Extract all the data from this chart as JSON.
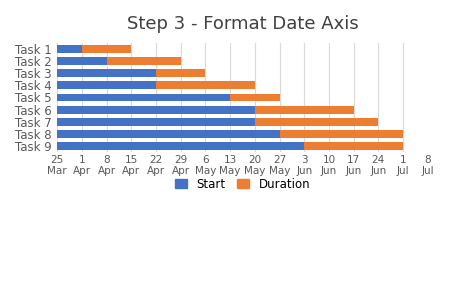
{
  "title": "Step 3 - Format Date Axis",
  "tasks": [
    "Task 1",
    "Task 2",
    "Task 3",
    "Task 4",
    "Task 5",
    "Task 6",
    "Task 7",
    "Task 8",
    "Task 9"
  ],
  "blue_widths": [
    7,
    14,
    28,
    28,
    49,
    56,
    56,
    63,
    70
  ],
  "orange_widths": [
    14,
    21,
    14,
    28,
    14,
    28,
    35,
    35,
    28
  ],
  "color_start": "#4472C4",
  "color_duration": "#ED7D31",
  "color_invisible": "#FFFFFF",
  "x_min": 0,
  "x_max": 105,
  "tick_positions": [
    0,
    7,
    14,
    21,
    28,
    35,
    42,
    49,
    56,
    63,
    70,
    77,
    84,
    91,
    98,
    105
  ],
  "tick_labels_day": [
    "25",
    "1",
    "8",
    "15",
    "22",
    "29",
    "6",
    "13",
    "20",
    "27",
    "3",
    "10",
    "17",
    "24",
    "1",
    "8"
  ],
  "tick_labels_month": [
    "Mar",
    "Apr",
    "Apr",
    "Apr",
    "Apr",
    "Apr",
    "May",
    "May",
    "May",
    "May",
    "Jun",
    "Jun",
    "Jun",
    "Jun",
    "Jul",
    "Jul"
  ],
  "legend_labels": [
    "Start",
    "Duration"
  ],
  "background_color": "#FFFFFF",
  "grid_color": "#D9D9D9",
  "title_fontsize": 13,
  "label_fontsize": 8.5,
  "tick_fontsize": 7.5,
  "bar_height": 0.65,
  "title_color": "#404040",
  "tick_color": "#595959"
}
